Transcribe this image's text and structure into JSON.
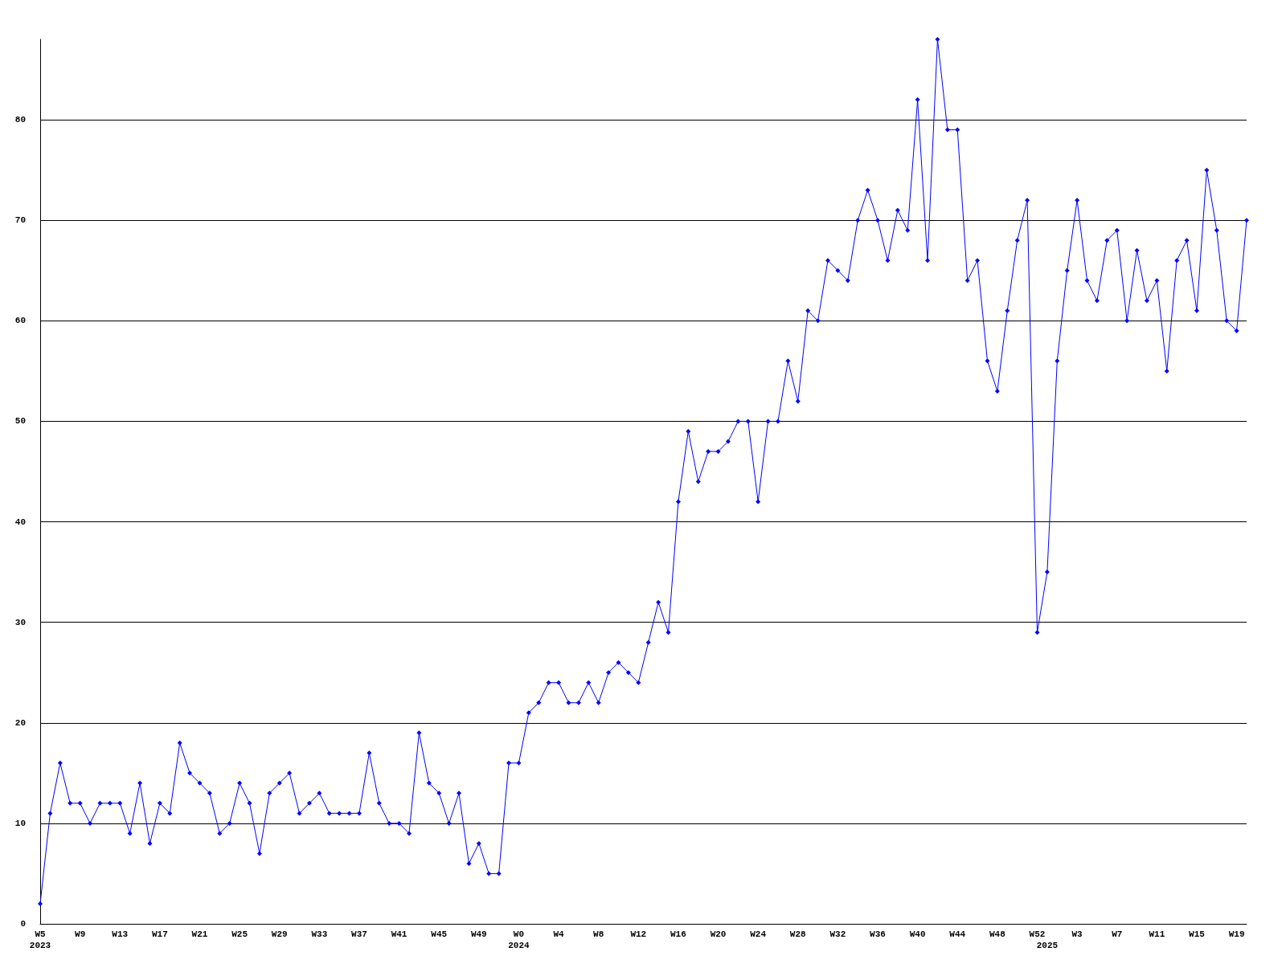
{
  "chart_data": {
    "type": "line",
    "categories": [
      "W5\n2023",
      null,
      null,
      null,
      "W9",
      null,
      null,
      null,
      "W13",
      null,
      null,
      null,
      "W17",
      null,
      null,
      null,
      "W21",
      null,
      null,
      null,
      "W25",
      null,
      null,
      null,
      "W29",
      null,
      null,
      null,
      "W33",
      null,
      null,
      null,
      "W37",
      null,
      null,
      null,
      "W41",
      null,
      null,
      null,
      "W45",
      null,
      null,
      null,
      "W49",
      null,
      null,
      null,
      "W0\n2024",
      null,
      null,
      null,
      "W4",
      null,
      null,
      null,
      "W8",
      null,
      null,
      null,
      "W12",
      null,
      null,
      null,
      "W16",
      null,
      null,
      null,
      "W20",
      null,
      null,
      null,
      "W24",
      null,
      null,
      null,
      "W28",
      null,
      null,
      null,
      "W32",
      null,
      null,
      null,
      "W36",
      null,
      null,
      null,
      "W40",
      null,
      null,
      null,
      "W44",
      null,
      null,
      null,
      "W48",
      null,
      null,
      null,
      "W52",
      "\n2025",
      null,
      null,
      "W3",
      null,
      null,
      null,
      "W7",
      null,
      null,
      null,
      "W11",
      null,
      null,
      null,
      "W15",
      null,
      null,
      null,
      "W19",
      null
    ],
    "series": [
      {
        "color": "#0000ff",
        "values": [
          2,
          11,
          16,
          12,
          12,
          10,
          12,
          12,
          12,
          9,
          14,
          8,
          12,
          11,
          18,
          15,
          14,
          13,
          9,
          10,
          14,
          12,
          7,
          13,
          14,
          15,
          11,
          12,
          13,
          11,
          11,
          11,
          11,
          17,
          12,
          10,
          10,
          9,
          19,
          14,
          13,
          10,
          13,
          6,
          8,
          5,
          5,
          16,
          16,
          21,
          22,
          24,
          24,
          22,
          22,
          24,
          22,
          25,
          26,
          25,
          24,
          28,
          32,
          29,
          42,
          49,
          44,
          47,
          47,
          48,
          50,
          50,
          42,
          50,
          50,
          56,
          52,
          61,
          60,
          66,
          65,
          64,
          70,
          73,
          70,
          66,
          71,
          69,
          82,
          66,
          88,
          79,
          79,
          64,
          66,
          56,
          53,
          61,
          68,
          72,
          29,
          35,
          56,
          65,
          72,
          64,
          62,
          68,
          69,
          60,
          67,
          62,
          64,
          55,
          66,
          68,
          61,
          75,
          69,
          60,
          59,
          70
        ]
      }
    ],
    "ylim": [
      0,
      88
    ],
    "yticks": [
      0,
      10,
      20,
      30,
      40,
      50,
      60,
      70,
      80
    ],
    "grid": "y",
    "marker": "diamond",
    "line_style": "solid"
  }
}
